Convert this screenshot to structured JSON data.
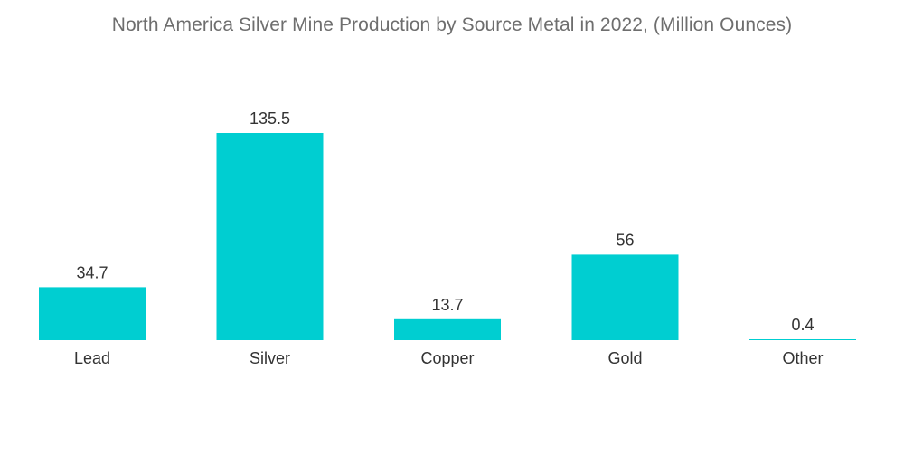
{
  "chart_data": {
    "type": "bar",
    "title": "North America Silver Mine Production by Source Metal in 2022, (Million Ounces)",
    "categories": [
      "Lead",
      "Silver",
      "Copper",
      "Gold",
      "Other"
    ],
    "values": [
      34.7,
      135.5,
      13.7,
      56,
      0.4
    ],
    "value_labels": [
      "34.7",
      "135.5",
      "13.7",
      "56",
      "0.4"
    ],
    "xlabel": "",
    "ylabel": "",
    "ylim": [
      0,
      135.5
    ],
    "grid": false,
    "legend": "none",
    "bar_color": "#00CED1"
  }
}
